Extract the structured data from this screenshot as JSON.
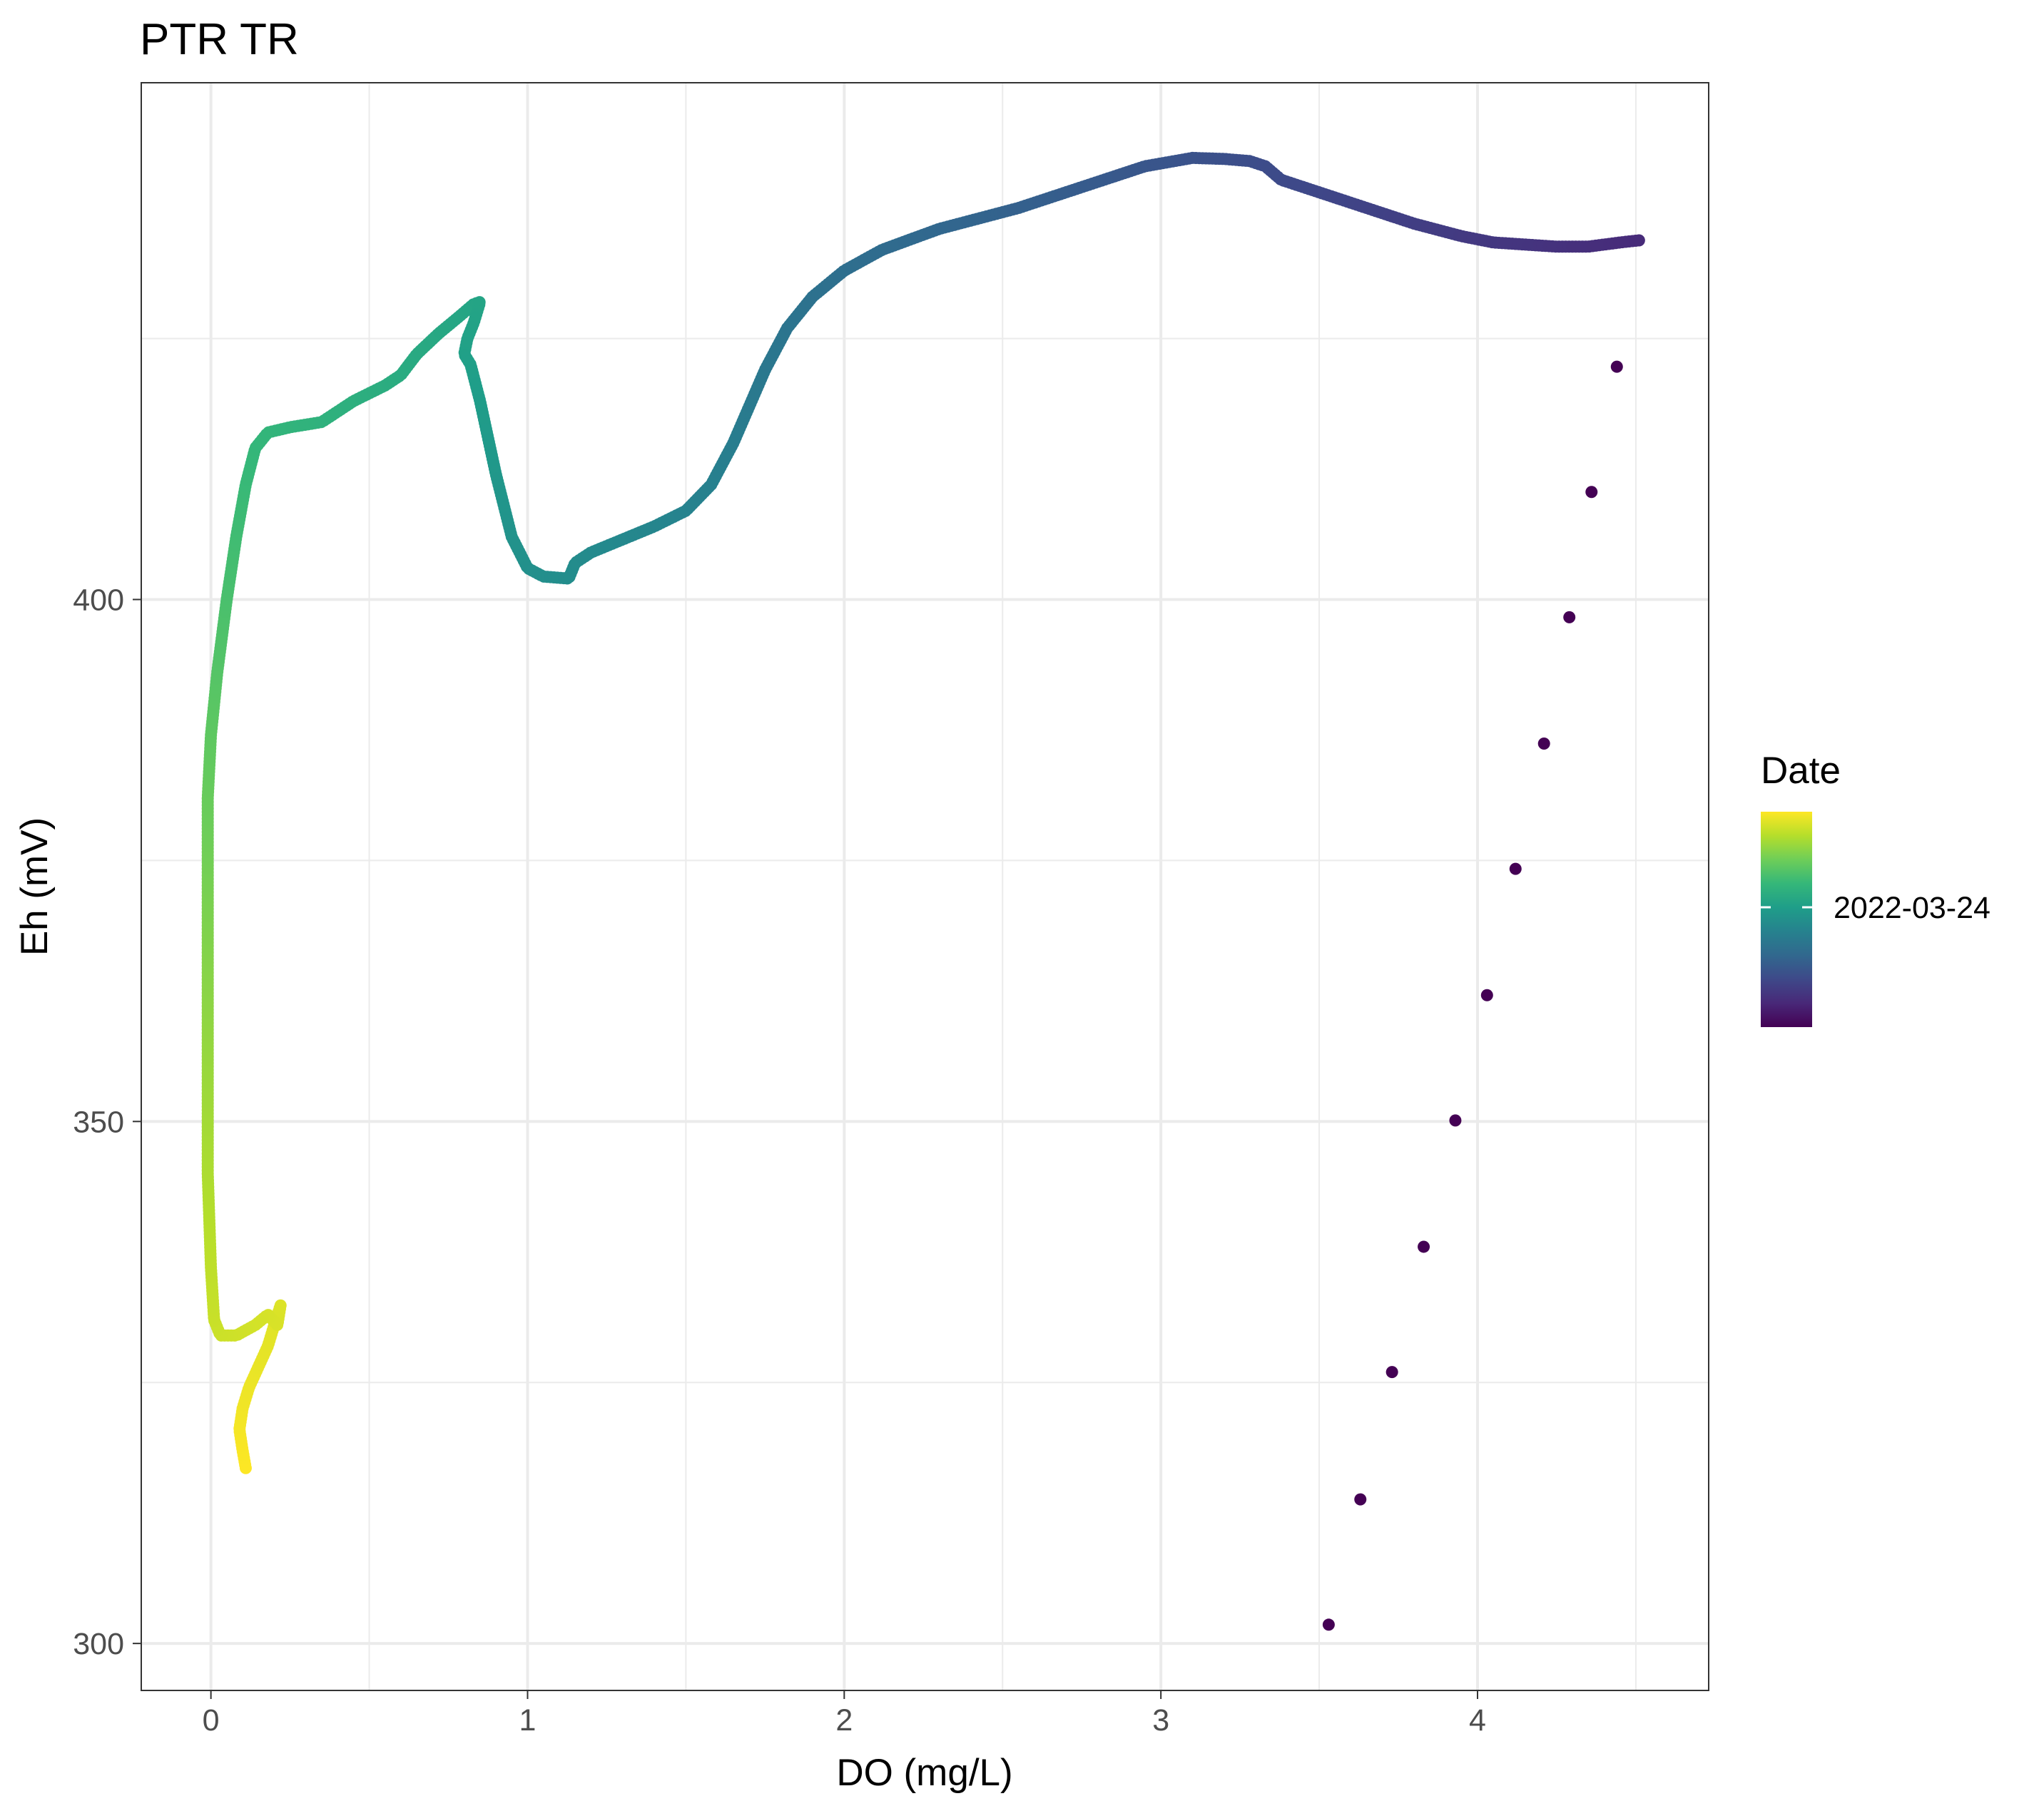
{
  "chart_data": {
    "type": "scatter",
    "title": "PTR TR",
    "xlabel": "DO (mg/L)",
    "ylabel": "Eh (mV)",
    "xlim": [
      -0.22,
      4.73
    ],
    "ylim": [
      295.5,
      449.5
    ],
    "x_ticks": [
      0,
      1,
      2,
      3,
      4
    ],
    "y_ticks": [
      300,
      350,
      400
    ],
    "grid": true,
    "legend": {
      "title": "Date",
      "label": "2022-03-24",
      "position": "right",
      "colormap": "viridis",
      "label_fraction": 0.45
    },
    "colors": {
      "viridis": [
        "#440154",
        "#482878",
        "#3e4989",
        "#31688e",
        "#26828e",
        "#1f9e89",
        "#35b779",
        "#6ece58",
        "#b5de2b",
        "#fde725"
      ],
      "panel_border": "#333333",
      "grid": "#ebebeb"
    },
    "series": [
      {
        "path": [
          [
            0.11,
            316.8
          ],
          [
            0.1,
            318.5
          ],
          [
            0.09,
            320.5
          ],
          [
            0.1,
            322.5
          ],
          [
            0.12,
            324.5
          ],
          [
            0.15,
            326.5
          ],
          [
            0.18,
            328.5
          ],
          [
            0.2,
            330.5
          ],
          [
            0.22,
            332.4
          ],
          [
            0.21,
            330.5
          ],
          [
            0.18,
            331.5
          ],
          [
            0.14,
            330.5
          ],
          [
            0.08,
            329.5
          ],
          [
            0.03,
            329.5
          ],
          [
            0.01,
            331.0
          ],
          [
            0.0,
            336.0
          ],
          [
            -0.01,
            345.0
          ],
          [
            -0.01,
            360.0
          ],
          [
            -0.01,
            372.0
          ],
          [
            -0.01,
            381.0
          ],
          [
            0.0,
            387.0
          ],
          [
            0.02,
            393.0
          ],
          [
            0.05,
            400.0
          ],
          [
            0.08,
            406.0
          ],
          [
            0.11,
            411.0
          ],
          [
            0.14,
            414.5
          ],
          [
            0.18,
            416.0
          ],
          [
            0.25,
            416.5
          ],
          [
            0.35,
            417.0
          ],
          [
            0.4,
            418.0
          ],
          [
            0.45,
            419.0
          ],
          [
            0.55,
            420.5
          ],
          [
            0.6,
            421.5
          ],
          [
            0.65,
            423.5
          ],
          [
            0.72,
            425.5
          ],
          [
            0.78,
            427.0
          ],
          [
            0.83,
            428.3
          ],
          [
            0.85,
            428.5
          ],
          [
            0.83,
            426.5
          ],
          [
            0.81,
            425.0
          ],
          [
            0.8,
            423.5
          ],
          [
            0.82,
            422.5
          ],
          [
            0.85,
            419.0
          ],
          [
            0.9,
            412.0
          ],
          [
            0.95,
            406.0
          ],
          [
            1.0,
            403.0
          ],
          [
            1.05,
            402.2
          ],
          [
            1.13,
            402.0
          ],
          [
            1.15,
            403.5
          ],
          [
            1.2,
            404.5
          ],
          [
            1.28,
            405.5
          ],
          [
            1.4,
            407.0
          ],
          [
            1.5,
            408.5
          ],
          [
            1.58,
            411.0
          ],
          [
            1.65,
            415.0
          ],
          [
            1.7,
            418.5
          ],
          [
            1.75,
            422.0
          ],
          [
            1.82,
            426.0
          ],
          [
            1.9,
            429.0
          ],
          [
            2.0,
            431.5
          ],
          [
            2.12,
            433.5
          ],
          [
            2.3,
            435.5
          ],
          [
            2.55,
            437.5
          ],
          [
            2.75,
            439.5
          ],
          [
            2.95,
            441.5
          ],
          [
            3.1,
            442.3
          ],
          [
            3.2,
            442.2
          ],
          [
            3.28,
            442.0
          ],
          [
            3.33,
            441.5
          ],
          [
            3.38,
            440.2
          ],
          [
            3.5,
            439.0
          ],
          [
            3.65,
            437.5
          ],
          [
            3.8,
            436.0
          ],
          [
            3.95,
            434.8
          ],
          [
            4.05,
            434.2
          ],
          [
            4.15,
            434.0
          ],
          [
            4.25,
            433.8
          ],
          [
            4.35,
            433.8
          ],
          [
            4.45,
            434.2
          ],
          [
            4.51,
            434.4
          ]
        ],
        "n_points": 900
      },
      {
        "points": [
          [
            3.53,
            301.8
          ],
          [
            3.63,
            313.8
          ],
          [
            3.73,
            326.0
          ],
          [
            3.83,
            338.0
          ],
          [
            3.93,
            350.1
          ],
          [
            4.03,
            362.1
          ],
          [
            4.12,
            374.2
          ],
          [
            4.21,
            386.2
          ],
          [
            4.29,
            398.3
          ],
          [
            4.36,
            410.3
          ],
          [
            4.44,
            422.3
          ]
        ]
      }
    ]
  }
}
